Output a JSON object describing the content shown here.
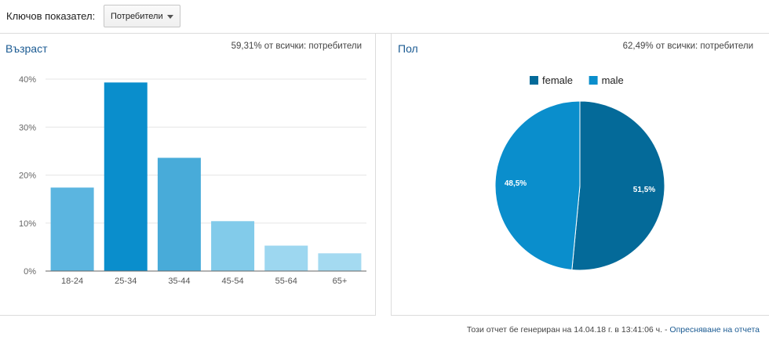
{
  "toolbar": {
    "key_label": "Ключов показател:",
    "metric_value": "Потребители"
  },
  "age_panel": {
    "title": "Възраст",
    "summary": "59,31% от всички: потребители"
  },
  "gender_panel": {
    "title": "Пол",
    "summary": "62,49% от всички: потребители"
  },
  "footer": {
    "text": "Този отчет бе генериран на 14.04.18 г. в 13:41:06 ч. - ",
    "refresh_link": "Опресняване на отчета"
  },
  "colors": {
    "bar_18_24": "#5bb5e0",
    "bar_25_34": "#0a8ecc",
    "bar_35_44": "#48abd9",
    "bar_45_54": "#82cbea",
    "bar_55_64": "#9dd7f0",
    "bar_65_plus": "#a4daf1",
    "female": "#046a99",
    "male": "#0a8ecc"
  },
  "chart_data": [
    {
      "type": "bar",
      "title": "Възраст",
      "categories": [
        "18-24",
        "25-34",
        "35-44",
        "45-54",
        "55-64",
        "65+"
      ],
      "values": [
        17.4,
        39.3,
        23.6,
        10.4,
        5.3,
        3.7
      ],
      "ylim": [
        0,
        40
      ],
      "yticks": [
        "0%",
        "10%",
        "20%",
        "30%",
        "40%"
      ],
      "grid": true
    },
    {
      "type": "pie",
      "title": "Пол",
      "labels": [
        "female",
        "male"
      ],
      "values": [
        51.5,
        48.5
      ],
      "value_labels": [
        "51,5%",
        "48,5%"
      ],
      "legend": "top"
    }
  ]
}
